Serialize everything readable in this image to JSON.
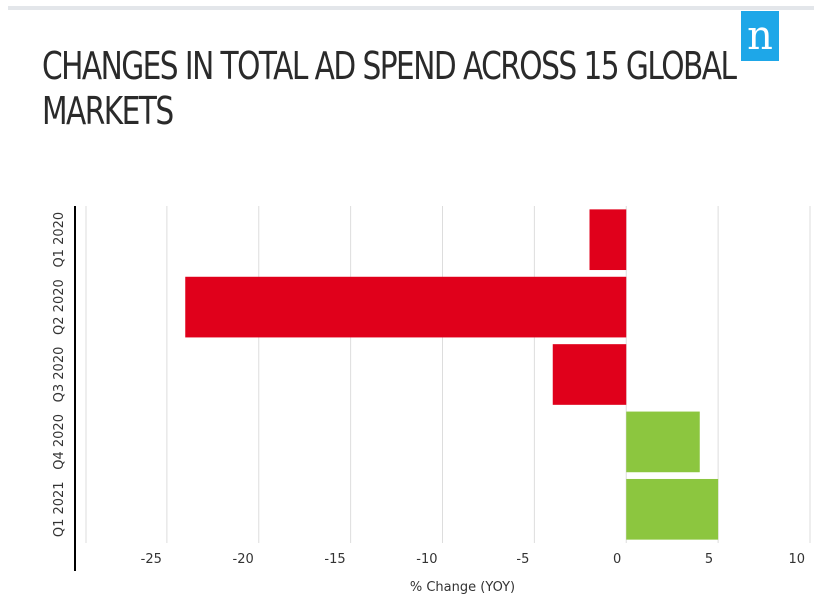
{
  "header": {
    "logo_letter": "n",
    "logo_color": "#1ea7e8"
  },
  "chart_data": {
    "type": "bar",
    "orientation": "horizontal",
    "title_lines": [
      "CHANGES IN TOTAL AD SPEND ACROSS 15 GLOBAL",
      "MARKETS"
    ],
    "categories": [
      "Q1 2020",
      "Q2 2020",
      "Q3 2020",
      "Q4 2020",
      "Q1 2021"
    ],
    "values": [
      -2,
      -24,
      -4,
      4,
      5
    ],
    "xlabel": "% Change (YOY)",
    "ylabel": "",
    "xlim": [
      -30,
      10
    ],
    "xticks": [
      -25,
      -20,
      -15,
      -10,
      -5,
      0,
      5,
      10
    ],
    "grid": true,
    "colors": {
      "negative": "#e0001b",
      "positive": "#8cc63f",
      "grid": "#dddddd",
      "axis": "#000000"
    }
  }
}
